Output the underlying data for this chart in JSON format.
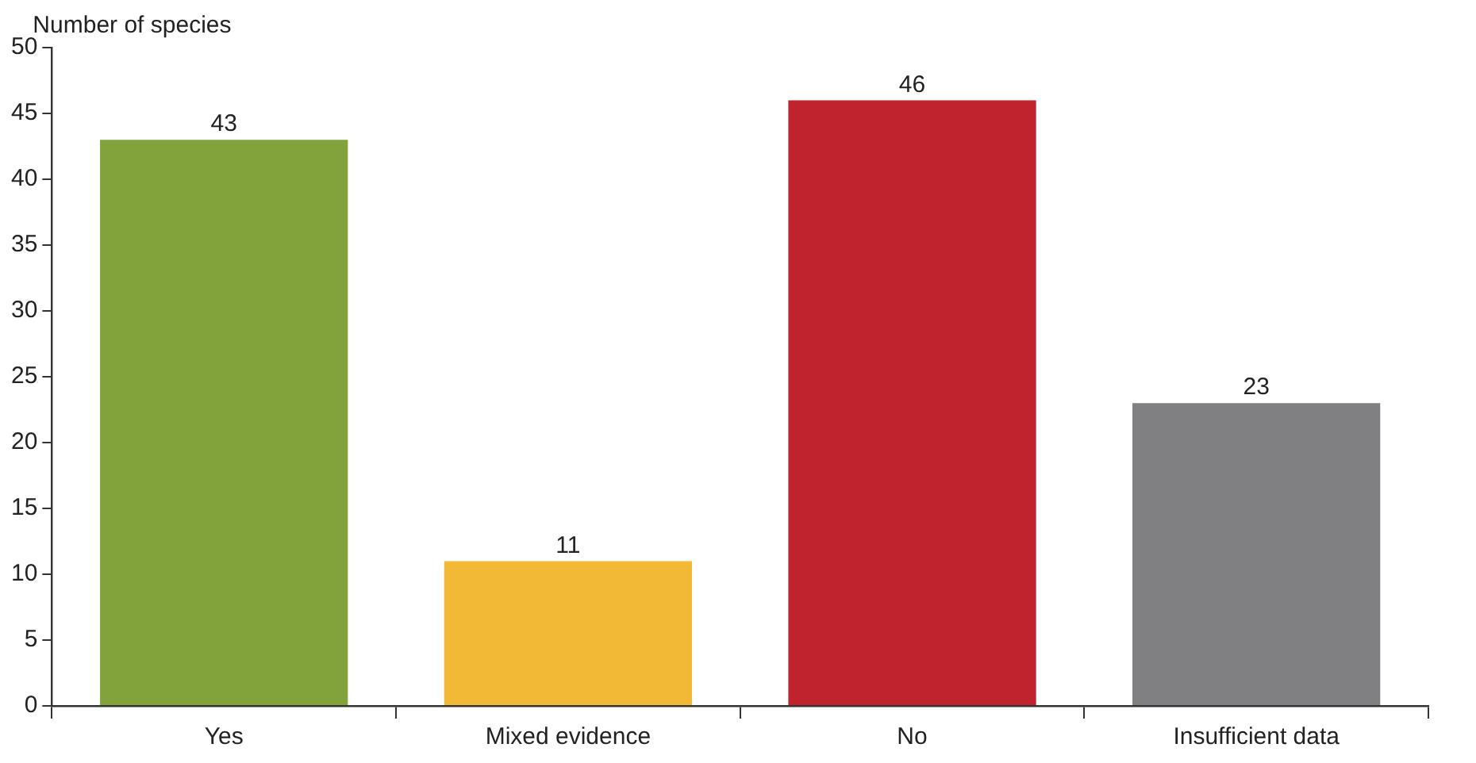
{
  "chart_data": {
    "type": "bar",
    "ylabel": "Number of species",
    "categories": [
      "Yes",
      "Mixed evidence",
      "No",
      "Insufficient data"
    ],
    "values": [
      43,
      11,
      46,
      23
    ],
    "colors": [
      "#82a33b",
      "#f2b937",
      "#c0232d",
      "#808083"
    ],
    "ylim": [
      0,
      50
    ],
    "yticks": [
      0,
      5,
      10,
      15,
      20,
      25,
      30,
      35,
      40,
      45,
      50
    ],
    "data_labels": true,
    "grid": false,
    "legend": false
  }
}
